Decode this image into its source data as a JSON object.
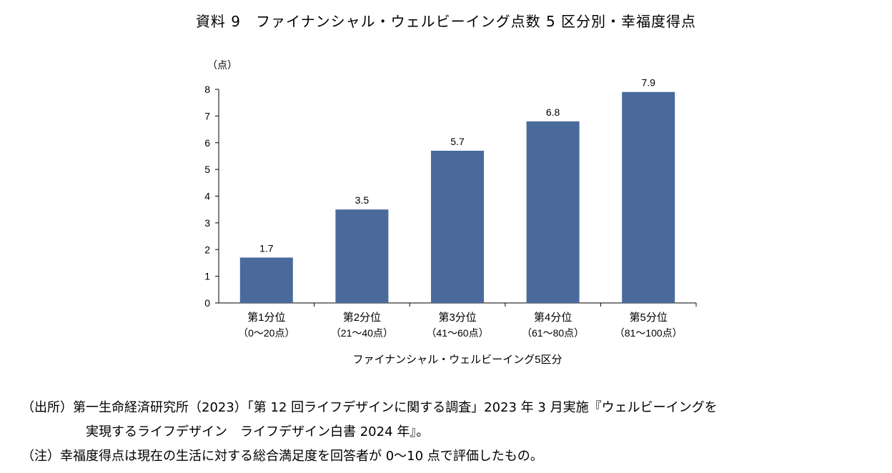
{
  "title": "資料 9　ファイナンシャル・ウェルビーイング点数 5 区分別・幸福度得点",
  "chart_data": {
    "type": "bar",
    "title": "資料 9　ファイナンシャル・ウェルビーイング点数 5 区分別・幸福度得点",
    "unit_label": "（点）",
    "xlabel": "ファイナンシャル・ウェルビーイング5区分",
    "ylabel": "（点）",
    "ylim": [
      0,
      8
    ],
    "yticks": [
      0,
      1,
      2,
      3,
      4,
      5,
      6,
      7,
      8
    ],
    "categories": [
      {
        "label": "第1分位",
        "range": "（0～20点）"
      },
      {
        "label": "第2分位",
        "range": "（21～40点）"
      },
      {
        "label": "第3分位",
        "range": "（41～60点）"
      },
      {
        "label": "第4分位",
        "range": "（61～80点）"
      },
      {
        "label": "第5分位",
        "range": "（81～100点）"
      }
    ],
    "values": [
      1.7,
      3.5,
      5.7,
      6.8,
      7.9
    ],
    "value_labels": [
      "1.7",
      "3.5",
      "5.7",
      "6.8",
      "7.9"
    ],
    "bar_color": "#4a6a9b"
  },
  "notes": {
    "source_line1": "（出所）第一生命経済研究所（2023）「第 12 回ライフデザインに関する調査」2023 年 3 月実施『ウェルビーイングを",
    "source_line2": "実現するライフデザイン　ライフデザイン白書 2024 年』。",
    "note_line": "（注）幸福度得点は現在の生活に対する総合満足度を回答者が 0～10 点で評価したもの。"
  }
}
